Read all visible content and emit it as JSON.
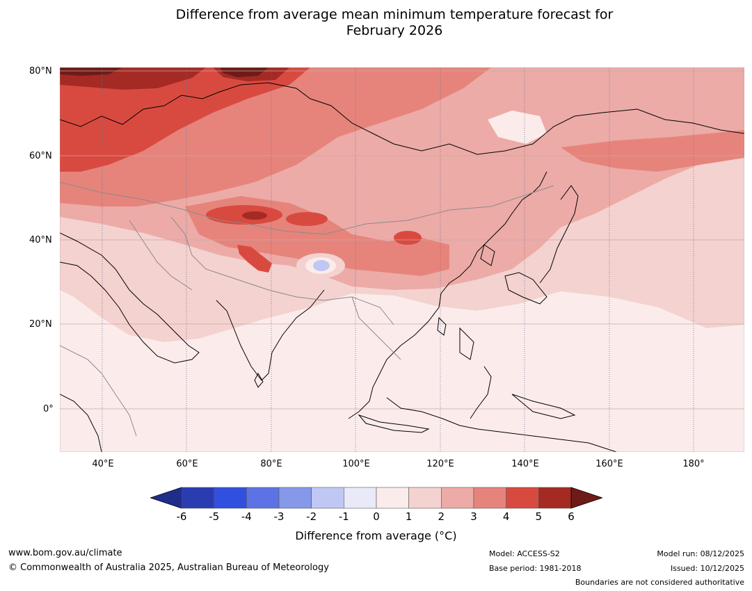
{
  "title": {
    "line1": "Difference from average mean minimum temperature forecast for",
    "line2": "February 2026"
  },
  "map": {
    "region": "Asia",
    "lat_labels": [
      "80°N",
      "60°N",
      "40°N",
      "20°N",
      "0°"
    ],
    "lon_labels": [
      "40°E",
      "60°E",
      "80°E",
      "100°E",
      "120°E",
      "140°E",
      "160°E",
      "180°"
    ],
    "lat_range": [
      -10,
      80
    ],
    "lon_range": [
      30,
      192
    ]
  },
  "colorbar": {
    "ticks": [
      "-6",
      "-5",
      "-4",
      "-3",
      "-2",
      "-1",
      "0",
      "1",
      "2",
      "3",
      "4",
      "5",
      "6"
    ],
    "colors": [
      "#1f2e8a",
      "#2a3cb1",
      "#3150e0",
      "#5c73e6",
      "#8598ea",
      "#bfc8f4",
      "#e8eaf9",
      "#fbeceb",
      "#f4d2cf",
      "#ecaba7",
      "#e6847c",
      "#d84a40",
      "#a52a23",
      "#6e1b17"
    ],
    "label": "Difference from average (°C)"
  },
  "footer": {
    "url": "www.bom.gov.au/climate",
    "copyright": "© Commonwealth of Australia 2025, Australian Bureau of Meteorology",
    "model": "Model: ACCESS-S2",
    "base_period": "Base period: 1981-2018",
    "model_run": "Model run: 08/12/2025",
    "issued": "Issued: 10/12/2025",
    "disclaimer": "Boundaries are not considered authoritative"
  }
}
